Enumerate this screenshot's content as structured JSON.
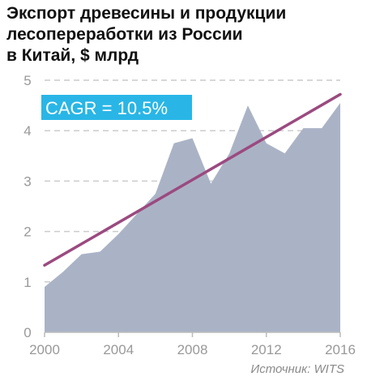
{
  "title_lines": [
    "Экспорт древесины и продукции",
    "лесопереработки из России",
    "в Китай, $ млрд"
  ],
  "source": "Источник: WITS",
  "annotation": {
    "text": "CAGR = 10.5%",
    "bg_color": "#29b6e6",
    "text_color": "#ffffff"
  },
  "colors": {
    "area": "#aab3c6",
    "trend": "#9b4a80",
    "grid": "#cccccc",
    "tick_text": "#999999"
  },
  "chart_data": {
    "type": "area",
    "title": "Экспорт древесины и продукции лесопереработки из России в Китай, $ млрд",
    "xlabel": "",
    "ylabel": "",
    "x": [
      2000,
      2001,
      2002,
      2003,
      2004,
      2005,
      2006,
      2007,
      2008,
      2009,
      2010,
      2011,
      2012,
      2013,
      2014,
      2015,
      2016
    ],
    "series": [
      {
        "values": [
          0.9,
          1.2,
          1.55,
          1.6,
          1.95,
          2.35,
          2.75,
          3.75,
          3.85,
          2.95,
          3.55,
          4.5,
          3.75,
          3.55,
          4.05,
          4.05,
          4.55
        ]
      }
    ],
    "trendline": {
      "x": [
        2000,
        2016
      ],
      "y": [
        1.33,
        4.72
      ]
    },
    "xlim": [
      2000,
      2016
    ],
    "ylim": [
      0,
      5
    ],
    "x_ticks": [
      2000,
      2004,
      2008,
      2012,
      2016
    ],
    "y_ticks": [
      0,
      1,
      2,
      3,
      4,
      5
    ],
    "grid": "horizontal dashed"
  }
}
